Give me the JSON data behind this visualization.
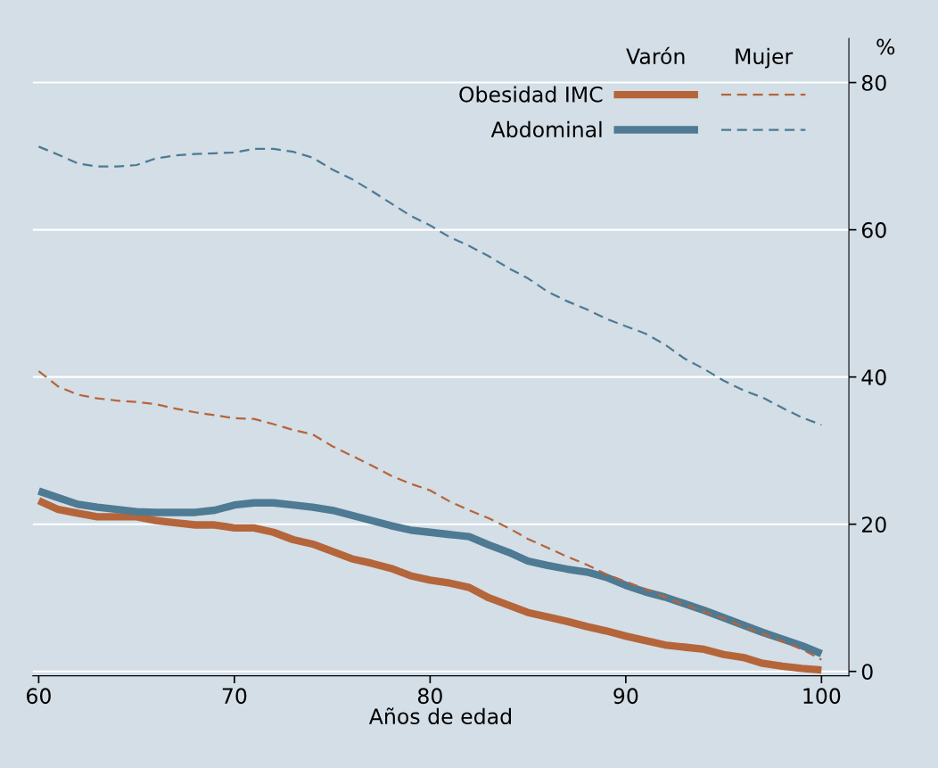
{
  "chart_data": {
    "type": "line",
    "xlabel": "Años de edad",
    "ylabel": "%",
    "x": [
      60,
      61,
      62,
      63,
      64,
      65,
      66,
      67,
      68,
      69,
      70,
      71,
      72,
      73,
      74,
      75,
      76,
      77,
      78,
      79,
      80,
      81,
      82,
      83,
      84,
      85,
      86,
      87,
      88,
      89,
      90,
      91,
      92,
      93,
      94,
      95,
      96,
      97,
      98,
      99,
      100
    ],
    "series": [
      {
        "name": "Obesidad IMC",
        "color": "#b5653a",
        "line_style": "solid",
        "values": [
          23.2,
          22,
          21.5,
          21,
          21,
          21,
          20.5,
          20.2,
          19.9,
          19.9,
          19.5,
          19.5,
          18.9,
          17.9,
          17.3,
          16.3,
          15.3,
          14.7,
          14,
          13,
          12.4,
          12,
          11.4,
          10,
          9,
          8,
          7.4,
          6.8,
          6.1,
          5.5,
          4.8,
          4.2,
          3.6,
          3.3,
          3,
          2.3,
          1.9,
          1.1,
          0.7,
          0.4,
          0.2
        ]
      },
      {
        "name": "Abdominal",
        "color": "#4e7a93",
        "line_style": "solid",
        "values": [
          24.5,
          23.6,
          22.7,
          22.3,
          22,
          21.7,
          21.6,
          21.6,
          21.6,
          21.9,
          22.6,
          22.9,
          22.9,
          22.6,
          22.3,
          21.9,
          21.2,
          20.5,
          19.8,
          19.2,
          18.9,
          18.6,
          18.3,
          17.2,
          16.2,
          15,
          14.4,
          13.9,
          13.5,
          12.8,
          11.7,
          10.8,
          10.1,
          9.2,
          8.3,
          7.3,
          6.3,
          5.3,
          4.4,
          3.5,
          2.4
        ]
      },
      {
        "color": "#b5653a",
        "line_style": "dashed",
        "values": [
          40.8,
          38.7,
          37.6,
          37.1,
          36.8,
          36.6,
          36.3,
          35.7,
          35.2,
          34.8,
          34.4,
          34.3,
          33.6,
          32.8,
          32.2,
          30.6,
          29.3,
          28,
          26.6,
          25.5,
          24.6,
          23.1,
          21.9,
          20.8,
          19.5,
          18,
          16.8,
          15.6,
          14.5,
          13.2,
          12.2,
          11.2,
          10.1,
          9.1,
          8.1,
          7.2,
          6.1,
          5.1,
          4.1,
          3,
          1.6
        ]
      },
      {
        "color": "#4e7a93",
        "line_style": "dashed",
        "values": [
          71.3,
          70.2,
          69,
          68.6,
          68.6,
          68.8,
          69.7,
          70.1,
          70.3,
          70.4,
          70.5,
          71,
          71,
          70.6,
          69.8,
          68.2,
          66.9,
          65.3,
          63.6,
          61.9,
          60.6,
          59,
          57.8,
          56.4,
          54.8,
          53.4,
          51.6,
          50.3,
          49.2,
          47.9,
          46.9,
          45.9,
          44.4,
          42.5,
          41.1,
          39.5,
          38.2,
          37.2,
          35.8,
          34.5,
          33.5
        ]
      }
    ],
    "annotations": [
      "Varón",
      "Mujer"
    ],
    "xlim": [
      59.7,
      101.4
    ],
    "ylim": [
      -0.6,
      86
    ],
    "xticks": [
      60,
      70,
      80,
      90,
      100
    ],
    "yticks": [
      0,
      20,
      40,
      60,
      80
    ],
    "grid": "y",
    "legend": "top right"
  }
}
